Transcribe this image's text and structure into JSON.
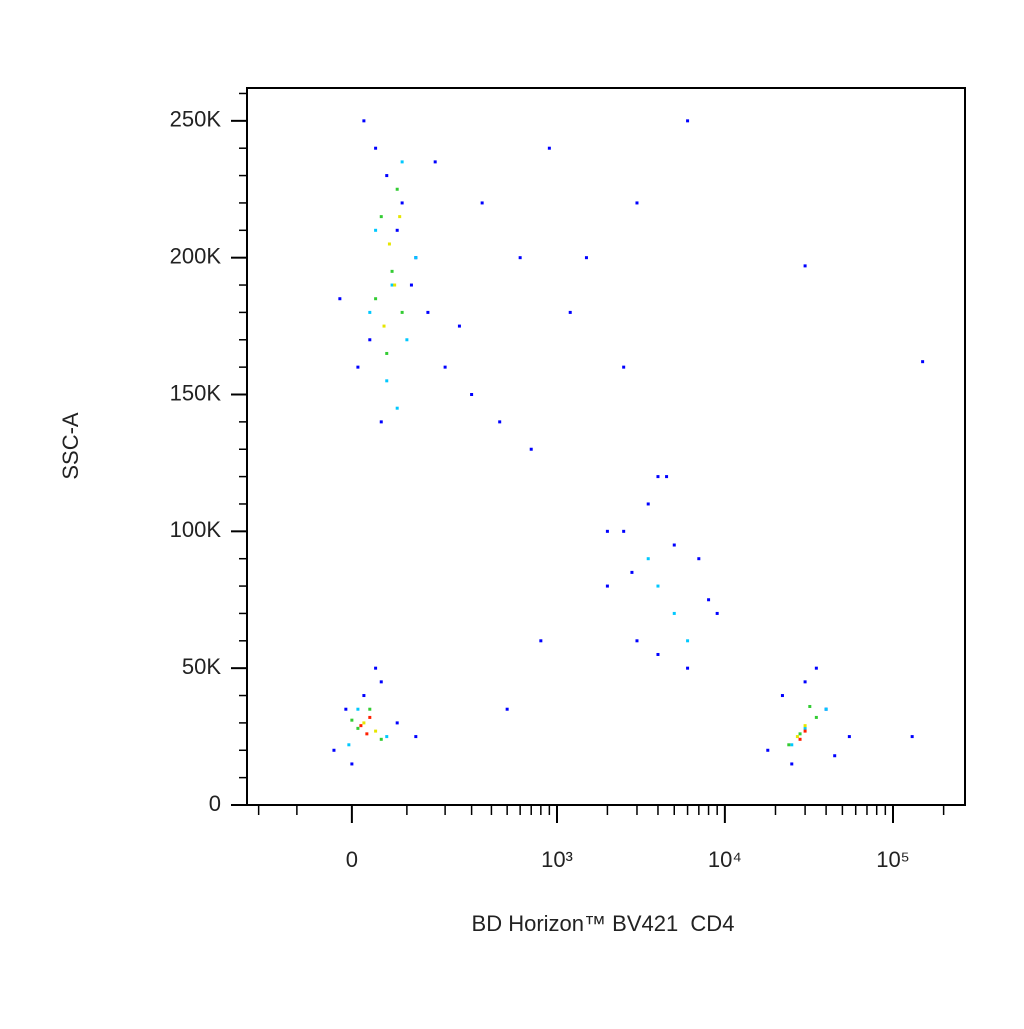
{
  "chart_data": {
    "type": "scatter",
    "xscale": "biexponential",
    "xlabel": "BD Horizon™ BV421  CD4",
    "ylabel": "SSC-A",
    "xlim": [
      -240,
      268000
    ],
    "ylim": [
      0,
      262000
    ],
    "xticks": [
      0,
      {
        "value": 1000,
        "label": "10³"
      },
      {
        "value": 10000,
        "label": "10⁴"
      },
      {
        "value": 100000,
        "label": "10⁵"
      }
    ],
    "xminorticks": [
      -200,
      -100,
      100,
      200,
      300,
      400,
      500,
      600,
      700,
      800,
      900,
      2000,
      3000,
      4000,
      5000,
      6000,
      7000,
      8000,
      9000,
      20000,
      30000,
      40000,
      50000,
      60000,
      70000,
      80000,
      90000,
      200000
    ],
    "yticks": [
      0,
      {
        "value": 50000,
        "label": "50K"
      },
      {
        "value": 100000,
        "label": "100K"
      },
      {
        "value": 150000,
        "label": "150K"
      },
      {
        "value": 200000,
        "label": "200K"
      },
      {
        "value": 250000,
        "label": "250K"
      }
    ],
    "yminorticks": [
      10000,
      20000,
      30000,
      40000,
      60000,
      70000,
      80000,
      90000,
      110000,
      120000,
      130000,
      140000,
      160000,
      170000,
      180000,
      190000,
      210000,
      220000,
      230000,
      240000,
      260000
    ],
    "series": [
      {
        "color": "#0000ff",
        "x": [
          20,
          40,
          60,
          90,
          120,
          150,
          200,
          300,
          450,
          700,
          30,
          80,
          110,
          170,
          250,
          50,
          10,
          -20,
          350,
          600,
          900,
          1500,
          2500,
          4000,
          1200,
          3000,
          6000,
          2000,
          800,
          500,
          -30,
          0,
          20,
          50,
          80,
          120,
          -10,
          40,
          2000,
          2500,
          3500,
          5000,
          7000,
          9000,
          4000,
          3000,
          6000,
          8000,
          4500,
          2800,
          18000,
          22000,
          30000,
          40000,
          55000,
          25000,
          35000,
          45000,
          150000,
          30000,
          130000
        ],
        "values": [
          250000,
          240000,
          230000,
          220000,
          200000,
          180000,
          160000,
          150000,
          140000,
          130000,
          170000,
          210000,
          190000,
          235000,
          175000,
          140000,
          160000,
          185000,
          220000,
          200000,
          240000,
          200000,
          160000,
          120000,
          180000,
          220000,
          250000,
          100000,
          60000,
          35000,
          20000,
          15000,
          40000,
          45000,
          30000,
          25000,
          35000,
          50000,
          80000,
          100000,
          110000,
          95000,
          90000,
          70000,
          55000,
          60000,
          50000,
          75000,
          120000,
          85000,
          20000,
          40000,
          45000,
          35000,
          25000,
          15000,
          50000,
          18000,
          162000,
          197000,
          25000
        ]
      },
      {
        "color": "#00c8ff",
        "x": [
          40,
          70,
          100,
          60,
          90,
          30,
          120,
          80,
          4000,
          5000,
          3500,
          6000,
          10,
          60,
          -5,
          25000,
          40000,
          30000
        ],
        "values": [
          210000,
          190000,
          170000,
          155000,
          235000,
          180000,
          200000,
          145000,
          80000,
          70000,
          90000,
          60000,
          35000,
          25000,
          22000,
          22000,
          35000,
          28000
        ]
      },
      {
        "color": "#33cc33",
        "x": [
          50,
          70,
          90,
          60,
          80,
          40,
          10,
          30,
          50,
          0,
          28000,
          35000,
          24000,
          32000
        ],
        "values": [
          215000,
          195000,
          180000,
          165000,
          225000,
          185000,
          28000,
          35000,
          24000,
          31000,
          26000,
          32000,
          22000,
          36000
        ]
      },
      {
        "color": "#e6e600",
        "x": [
          65,
          75,
          55,
          85,
          20,
          40,
          30000,
          27000
        ],
        "values": [
          205000,
          190000,
          175000,
          215000,
          30000,
          27000,
          29000,
          25000
        ]
      },
      {
        "color": "#ff2000",
        "x": [
          15,
          30,
          25,
          30000,
          28000
        ],
        "values": [
          29000,
          32000,
          26000,
          27000,
          24000
        ]
      }
    ]
  }
}
